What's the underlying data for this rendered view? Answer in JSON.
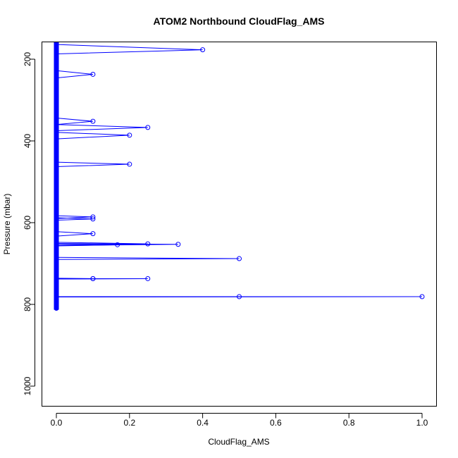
{
  "chart_data": {
    "type": "line",
    "title": "ATOM2 Northbound CloudFlag_AMS",
    "xlabel": "CloudFlag_AMS",
    "ylabel": "Pressure (mbar)",
    "xlim": [
      0,
      1
    ],
    "ylim": [
      1040,
      160
    ],
    "y_reversed": true,
    "x_ticks": [
      0.0,
      0.2,
      0.4,
      0.6,
      0.8,
      1.0
    ],
    "x_tick_labels": [
      "0.0",
      "0.2",
      "0.4",
      "0.6",
      "0.8",
      "1.0"
    ],
    "y_ticks": [
      200,
      400,
      600,
      800,
      1000
    ],
    "y_tick_labels": [
      "200",
      "400",
      "600",
      "800",
      "1000"
    ],
    "grid": false,
    "series_color": "#0000ff",
    "baseline": {
      "x": 0,
      "y_from": 160,
      "y_to": 813
    },
    "spikes": [
      {
        "y0": 164,
        "peak_x": 0.4,
        "peak_y": 177,
        "y1": 187
      },
      {
        "y0": 228,
        "peak_x": 0.1,
        "peak_y": 237,
        "y1": 246
      },
      {
        "y0": 344,
        "peak_x": 0.1,
        "peak_y": 352,
        "y1": 360
      },
      {
        "y0": 360,
        "peak_x": 0.25,
        "peak_y": 367,
        "y1": 375
      },
      {
        "y0": 379,
        "peak_x": 0.2,
        "peak_y": 386,
        "y1": 395
      },
      {
        "y0": 452,
        "peak_x": 0.2,
        "peak_y": 457,
        "y1": 463
      },
      {
        "y0": 583,
        "peak_x": 0.1,
        "peak_y": 586,
        "y1": 590
      },
      {
        "y0": 588,
        "peak_x": 0.1,
        "peak_y": 591,
        "y1": 594
      },
      {
        "y0": 622,
        "peak_x": 0.1,
        "peak_y": 627,
        "y1": 633
      },
      {
        "y0": 648,
        "peak_x": 0.25,
        "peak_y": 652,
        "y1": 656
      },
      {
        "y0": 651,
        "peak_x": 0.333,
        "peak_y": 653,
        "y1": 656
      },
      {
        "y0": 653,
        "peak_x": 0.167,
        "peak_y": 654,
        "y1": 657
      },
      {
        "y0": 685,
        "peak_x": 0.5,
        "peak_y": 688,
        "y1": 690
      },
      {
        "y0": 737,
        "peak_x": 0.25,
        "peak_y": 737,
        "y1": 738
      },
      {
        "y0": 736,
        "peak_x": 0.1,
        "peak_y": 737,
        "y1": 738
      },
      {
        "y0": 781,
        "peak_x": 1.0,
        "peak_y": 781,
        "y1": 782
      }
    ],
    "extra_points": [
      {
        "x": 0.5,
        "y": 781
      },
      {
        "x": 0.1,
        "y": 737
      }
    ]
  }
}
